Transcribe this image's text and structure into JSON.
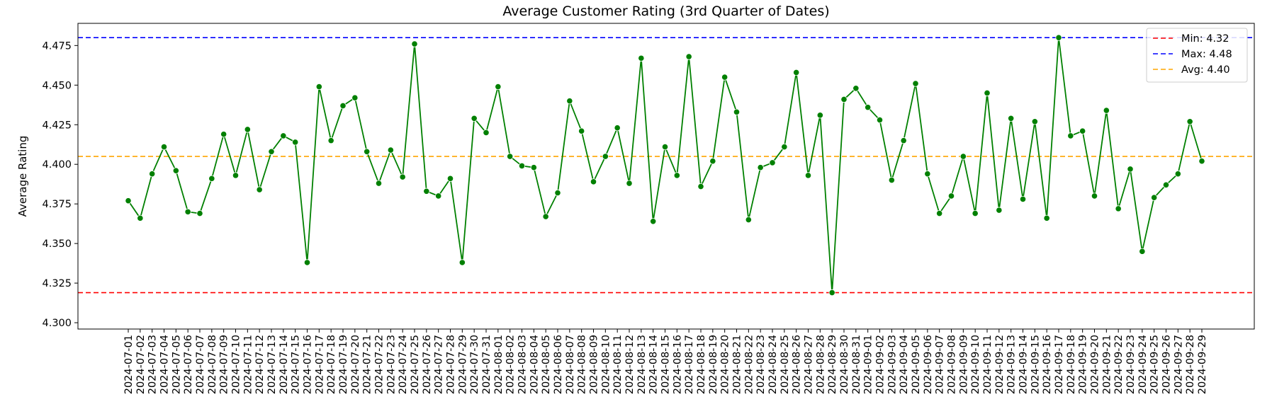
{
  "chart_data": {
    "type": "line",
    "title": "Average Customer Rating (3rd Quarter of Dates)",
    "xlabel": "",
    "ylabel": "Average Rating",
    "ylim": [
      4.296,
      4.489
    ],
    "yticks": [
      "4.300",
      "4.325",
      "4.350",
      "4.375",
      "4.400",
      "4.425",
      "4.450",
      "4.475"
    ],
    "grid": false,
    "legend_position": "top-right",
    "colors": {
      "line": "#008000",
      "min": "#ff0000",
      "max": "#0000ff",
      "avg": "#ffa500"
    },
    "x": [
      "2024-07-01",
      "2024-07-02",
      "2024-07-03",
      "2024-07-04",
      "2024-07-05",
      "2024-07-06",
      "2024-07-07",
      "2024-07-08",
      "2024-07-09",
      "2024-07-10",
      "2024-07-11",
      "2024-07-12",
      "2024-07-13",
      "2024-07-14",
      "2024-07-15",
      "2024-07-16",
      "2024-07-17",
      "2024-07-18",
      "2024-07-19",
      "2024-07-20",
      "2024-07-21",
      "2024-07-22",
      "2024-07-23",
      "2024-07-24",
      "2024-07-25",
      "2024-07-26",
      "2024-07-27",
      "2024-07-28",
      "2024-07-29",
      "2024-07-30",
      "2024-07-31",
      "2024-08-01",
      "2024-08-02",
      "2024-08-03",
      "2024-08-04",
      "2024-08-05",
      "2024-08-06",
      "2024-08-07",
      "2024-08-08",
      "2024-08-09",
      "2024-08-10",
      "2024-08-11",
      "2024-08-12",
      "2024-08-13",
      "2024-08-14",
      "2024-08-15",
      "2024-08-16",
      "2024-08-17",
      "2024-08-18",
      "2024-08-19",
      "2024-08-20",
      "2024-08-21",
      "2024-08-22",
      "2024-08-23",
      "2024-08-24",
      "2024-08-25",
      "2024-08-26",
      "2024-08-27",
      "2024-08-28",
      "2024-08-29",
      "2024-08-30",
      "2024-08-31",
      "2024-09-01",
      "2024-09-02",
      "2024-09-03",
      "2024-09-04",
      "2024-09-05",
      "2024-09-06",
      "2024-09-07",
      "2024-09-08",
      "2024-09-09",
      "2024-09-10",
      "2024-09-11",
      "2024-09-12",
      "2024-09-13",
      "2024-09-14",
      "2024-09-15",
      "2024-09-16",
      "2024-09-17",
      "2024-09-18",
      "2024-09-19",
      "2024-09-20",
      "2024-09-21",
      "2024-09-22",
      "2024-09-23",
      "2024-09-24",
      "2024-09-25",
      "2024-09-26",
      "2024-09-27",
      "2024-09-28",
      "2024-09-29"
    ],
    "series": [
      {
        "values": [
          4.377,
          4.366,
          4.394,
          4.411,
          4.396,
          4.37,
          4.369,
          4.391,
          4.419,
          4.393,
          4.422,
          4.384,
          4.408,
          4.418,
          4.414,
          4.338,
          4.449,
          4.415,
          4.437,
          4.442,
          4.408,
          4.388,
          4.409,
          4.392,
          4.476,
          4.383,
          4.38,
          4.391,
          4.338,
          4.429,
          4.42,
          4.449,
          4.405,
          4.399,
          4.398,
          4.367,
          4.382,
          4.44,
          4.421,
          4.389,
          4.405,
          4.423,
          4.388,
          4.467,
          4.364,
          4.411,
          4.393,
          4.468,
          4.386,
          4.402,
          4.455,
          4.433,
          4.365,
          4.398,
          4.401,
          4.411,
          4.458,
          4.393,
          4.431,
          4.319,
          4.441,
          4.448,
          4.436,
          4.428,
          4.39,
          4.415,
          4.451,
          4.394,
          4.369,
          4.38,
          4.405,
          4.369,
          4.445,
          4.371,
          4.429,
          4.378,
          4.427,
          4.366,
          4.48,
          4.418,
          4.421,
          4.38,
          4.434,
          4.372,
          4.397,
          4.345,
          4.379,
          4.387,
          4.394,
          4.427,
          4.402
        ]
      }
    ],
    "reference_lines": [
      {
        "name": "Min: 4.32",
        "value": 4.319,
        "color": "#ff0000"
      },
      {
        "name": "Max: 4.48",
        "value": 4.48,
        "color": "#0000ff"
      },
      {
        "name": "Avg: 4.40",
        "value": 4.405,
        "color": "#ffa500"
      }
    ]
  }
}
